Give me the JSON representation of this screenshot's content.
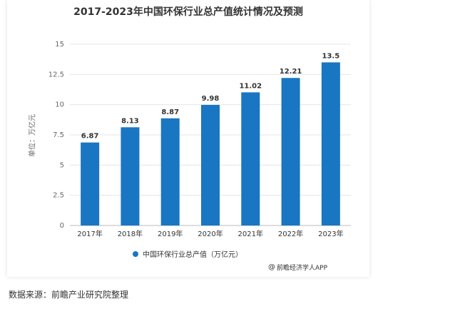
{
  "chart_data": {
    "type": "bar",
    "title": "2017-2023年中国环保行业总产值统计情况及预测",
    "ylabel": "单位：万亿元",
    "xlabel": "",
    "categories": [
      "2017年",
      "2018年",
      "2019年",
      "2020年",
      "2021年",
      "2022年",
      "2023年"
    ],
    "series": [
      {
        "name": "中国环保行业总产值（万亿元）",
        "values": [
          6.87,
          8.13,
          8.87,
          9.98,
          11.02,
          12.21,
          13.5
        ],
        "labels": [
          "6.87",
          "8.13",
          "8.87",
          "9.98",
          "11.02",
          "12.21",
          "13.5"
        ]
      }
    ],
    "yticks": [
      "0",
      "2.5",
      "5",
      "7.5",
      "10",
      "12.5",
      "15"
    ],
    "ylim": [
      0,
      15
    ],
    "grid": true,
    "legend_position": "bottom",
    "bar_color": "#1976C2"
  },
  "credit": {
    "icon": "at-sign-icon",
    "icon_glyph": "@",
    "text": "前瞻经济学人APP"
  },
  "source_note": "数据来源：前瞻产业研究院整理"
}
